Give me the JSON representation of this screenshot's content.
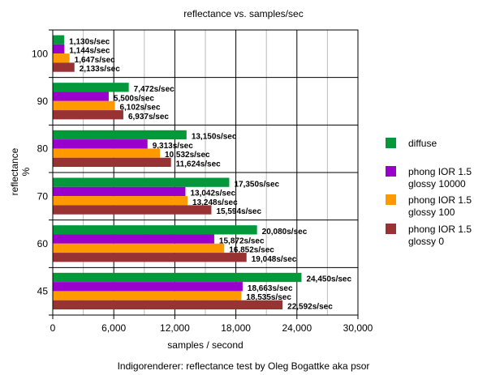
{
  "chart_data": {
    "type": "bar",
    "orientation": "horizontal",
    "title": "reflectance vs. samples/sec",
    "xlabel": "samples / second",
    "ylabel": "reflectance\n%",
    "caption": "Indigorenderer: reflectance test by Oleg Bogattke aka psor",
    "xlim": [
      0,
      30000
    ],
    "xticks": [
      0,
      6000,
      12000,
      18000,
      24000,
      30000
    ],
    "xtick_labels": [
      "0",
      "6,000",
      "12,000",
      "18,000",
      "24,000",
      "30,000"
    ],
    "minor_grid_step": 3000,
    "grid": true,
    "legend_position": "right",
    "categories": [
      "100",
      "90",
      "80",
      "70",
      "60",
      "45"
    ],
    "series": [
      {
        "name": "diffuse",
        "color": "#03993a",
        "values": [
          1130,
          7472,
          13150,
          17350,
          20080,
          24450
        ],
        "labels": [
          "1,130s/sec",
          "7,472s/sec",
          "13,150s/sec",
          "17,350s/sec",
          "20,080s/sec",
          "24,450s/sec"
        ]
      },
      {
        "name": "phong IOR 1.5\nglossy 10000",
        "color": "#9900cc",
        "values": [
          1144,
          5500,
          9313,
          13042,
          15872,
          18663
        ],
        "labels": [
          "1,144s/sec",
          "5,500s/sec",
          "9,313s/sec",
          "13,042s/sec",
          "15,872s/sec",
          "18,663s/sec"
        ]
      },
      {
        "name": "phong IOR 1.5\nglossy 100",
        "color": "#ff9900",
        "values": [
          1647,
          6102,
          10532,
          13248,
          16852,
          18535
        ],
        "labels": [
          "1,647s/sec",
          "6,102s/sec",
          "10,532s/sec",
          "13,248s/sec",
          "16,852s/sec",
          "18,535s/sec"
        ]
      },
      {
        "name": "phong IOR 1.5\nglossy 0",
        "color": "#993333",
        "values": [
          2133,
          6937,
          11624,
          15594,
          19048,
          22592
        ],
        "labels": [
          "2,133s/sec",
          "6,937s/sec",
          "11,624s/sec",
          "15,594s/sec",
          "19,048s/sec",
          "22,592s/sec"
        ]
      }
    ]
  }
}
